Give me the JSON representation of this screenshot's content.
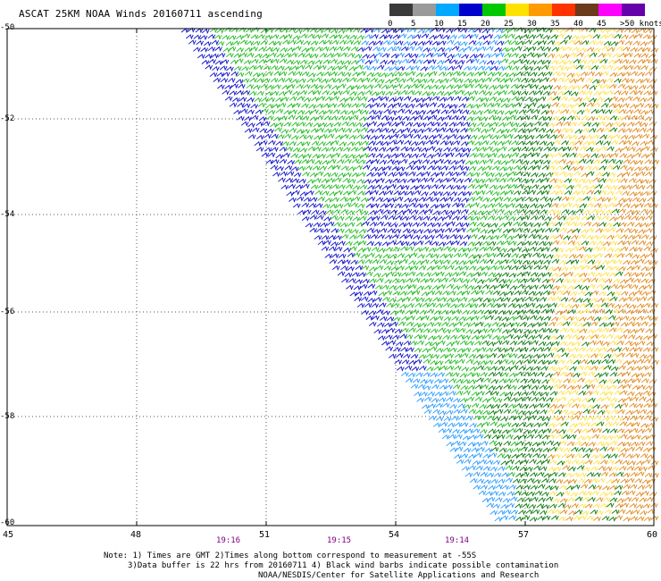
{
  "title": "ASCAT 25KM NOAA Winds 20160711 ascending",
  "legend": {
    "items": [
      {
        "label": "0",
        "color": "#3a3a3a"
      },
      {
        "label": "5",
        "color": "#9a9a9a"
      },
      {
        "label": "10",
        "color": "#00a8ff"
      },
      {
        "label": "15",
        "color": "#0000cc"
      },
      {
        "label": "20",
        "color": "#00c800"
      },
      {
        "label": "25",
        "color": "#ffe100"
      },
      {
        "label": "30",
        "color": "#ff9a00"
      },
      {
        "label": "35",
        "color": "#ff3300"
      },
      {
        "label": "40",
        "color": "#6b3a1a"
      },
      {
        "label": "45",
        "color": "#ff00ff"
      },
      {
        "label": "",
        "color": "#6600aa"
      }
    ],
    "last_label": ">50 knots"
  },
  "latitude_labels": [
    "-50",
    "-52",
    "-54",
    "-56",
    "-58",
    "-60"
  ],
  "longitude_labels": [
    "45",
    "48",
    "51",
    "54",
    "57",
    "60"
  ],
  "time_labels": [
    "19:16",
    "19:15",
    "19:14"
  ],
  "notes": {
    "line1": "Note: 1) Times are GMT 2)Times along bottom correspond to measurement at -55S",
    "line2": "3)Data buffer is 22 hrs from 20160711 4) Black wind barbs indicate possible contamination",
    "line3": "NOAA/NESDIS/Center for Satellite Applications and Research"
  },
  "colors": {
    "grid": "#555555",
    "light_blue_barbs": "#2a9bff",
    "blue_barbs": "#1010c8",
    "green_barbs": "#22bb22",
    "dark_green_barbs": "#0b7a0b",
    "yellow_barbs": "#ffe14a",
    "orange_barbs": "#e08a20"
  }
}
